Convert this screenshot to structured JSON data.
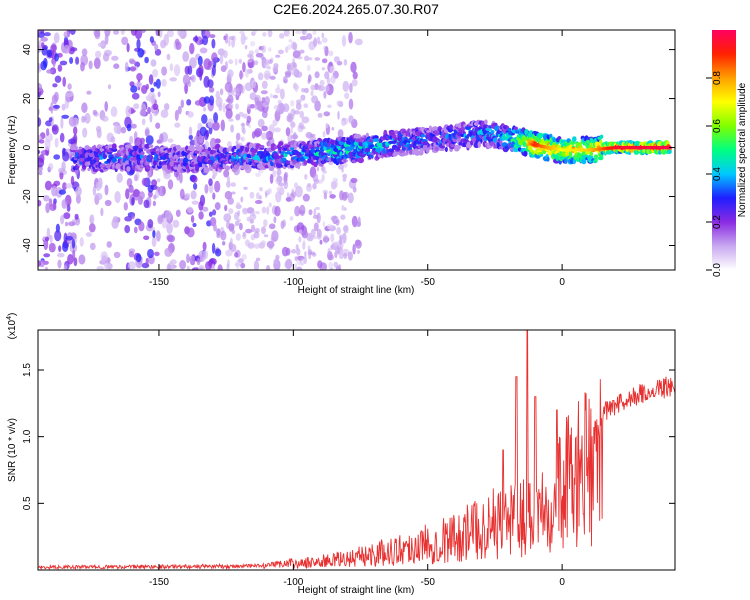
{
  "title": "C2E6.2024.265.07.30.R07",
  "chart_data": [
    {
      "type": "heatmap",
      "name": "spectrogram",
      "xlabel": "Height of straight line (km)",
      "ylabel": "Frequency (Hz)",
      "xlim": [
        -195,
        42
      ],
      "ylim": [
        -50,
        48
      ],
      "xticks": [
        -150,
        -100,
        -50,
        0
      ],
      "yticks": [
        -40,
        -20,
        0,
        20,
        40
      ],
      "colorbar": {
        "label": "Normalized spectral amplitude",
        "range": [
          0,
          1
        ],
        "ticks": [
          "0.0",
          "0.2",
          "0.4",
          "0.6",
          "0.8"
        ],
        "tick_values": [
          0.0,
          0.2,
          0.4,
          0.6,
          0.8
        ],
        "colormap": [
          "#ffffff",
          "#c8a8f0",
          "#8a2be2",
          "#1e1eff",
          "#00c8ff",
          "#00ff80",
          "#80ff00",
          "#ffff00",
          "#ffa000",
          "#ff2000",
          "#ff0060"
        ]
      },
      "ridge": [
        {
          "x": -180,
          "y": -5
        },
        {
          "x": -160,
          "y": -4
        },
        {
          "x": -140,
          "y": -5
        },
        {
          "x": -120,
          "y": -4
        },
        {
          "x": -100,
          "y": -3
        },
        {
          "x": -80,
          "y": -1
        },
        {
          "x": -60,
          "y": 2
        },
        {
          "x": -40,
          "y": 4
        },
        {
          "x": -30,
          "y": 6
        },
        {
          "x": -20,
          "y": 4
        },
        {
          "x": -10,
          "y": 1
        },
        {
          "x": 0,
          "y": -1
        },
        {
          "x": 10,
          "y": -1
        },
        {
          "x": 20,
          "y": 0
        },
        {
          "x": 40,
          "y": 0
        }
      ],
      "ridge_amplitude": [
        {
          "x": -180,
          "a": 0.3
        },
        {
          "x": -140,
          "a": 0.25
        },
        {
          "x": -120,
          "a": 0.3
        },
        {
          "x": -100,
          "a": 0.35
        },
        {
          "x": -80,
          "a": 0.45
        },
        {
          "x": -60,
          "a": 0.35
        },
        {
          "x": -40,
          "a": 0.3
        },
        {
          "x": -20,
          "a": 0.4
        },
        {
          "x": -10,
          "a": 0.9
        },
        {
          "x": 0,
          "a": 0.7
        },
        {
          "x": 10,
          "a": 0.75
        },
        {
          "x": 20,
          "a": 0.95
        },
        {
          "x": 40,
          "a": 0.98
        }
      ]
    },
    {
      "type": "line",
      "name": "snr",
      "xlabel": "Height of straight line (km)",
      "ylabel": "SNR (10 * v/v)",
      "yscale_label": "(x10",
      "yscale_exp": "4",
      "xlim": [
        -195,
        42
      ],
      "ylim": [
        0,
        1.8
      ],
      "xticks": [
        -150,
        -100,
        -50,
        0
      ],
      "yticks": [
        "0.5",
        "1.0",
        "1.5"
      ],
      "ytick_values": [
        0.5,
        1.0,
        1.5
      ],
      "color": "#e83030",
      "envelope": [
        {
          "x": -195,
          "y": 0.02
        },
        {
          "x": -110,
          "y": 0.03
        },
        {
          "x": -100,
          "y": 0.06
        },
        {
          "x": -80,
          "y": 0.12
        },
        {
          "x": -60,
          "y": 0.22
        },
        {
          "x": -40,
          "y": 0.35
        },
        {
          "x": -30,
          "y": 0.45
        },
        {
          "x": -20,
          "y": 0.55
        },
        {
          "x": -12,
          "y": 0.6
        },
        {
          "x": -5,
          "y": 0.8
        },
        {
          "x": 5,
          "y": 1.0
        },
        {
          "x": 15,
          "y": 1.2
        },
        {
          "x": 25,
          "y": 1.32
        },
        {
          "x": 35,
          "y": 1.38
        },
        {
          "x": 42,
          "y": 1.42
        }
      ],
      "spikes": [
        {
          "x": -13,
          "y": 1.8
        },
        {
          "x": -17,
          "y": 1.45
        },
        {
          "x": -22,
          "y": 0.9
        },
        {
          "x": -10,
          "y": 1.3
        },
        {
          "x": -2,
          "y": 1.2
        },
        {
          "x": 8,
          "y": 0.42
        }
      ]
    }
  ]
}
